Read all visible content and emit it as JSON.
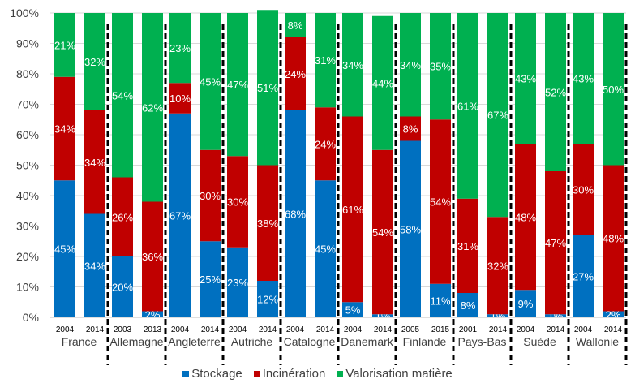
{
  "chart_data": {
    "type": "bar",
    "stacked": true,
    "ylim": [
      0,
      100
    ],
    "y_ticks": [
      "0%",
      "10%",
      "20%",
      "30%",
      "40%",
      "50%",
      "60%",
      "70%",
      "80%",
      "90%",
      "100%"
    ],
    "grid": true,
    "legend_position": "bottom",
    "groups": [
      {
        "name": "France",
        "years": [
          "2004",
          "2014"
        ]
      },
      {
        "name": "Allemagne",
        "years": [
          "2003",
          "2013"
        ]
      },
      {
        "name": "Angleterre",
        "years": [
          "2004",
          "2014"
        ]
      },
      {
        "name": "Autriche",
        "years": [
          "2004",
          "2014"
        ]
      },
      {
        "name": "Catalogne",
        "years": [
          "2004",
          "2014"
        ]
      },
      {
        "name": "Danemark",
        "years": [
          "2004",
          "2014"
        ]
      },
      {
        "name": "Finlande",
        "years": [
          "2005",
          "2015"
        ]
      },
      {
        "name": "Pays-Bas",
        "years": [
          "2001",
          "2014"
        ]
      },
      {
        "name": "Suède",
        "years": [
          "2004",
          "2014"
        ]
      },
      {
        "name": "Wallonie",
        "years": [
          "2004",
          "2014"
        ]
      }
    ],
    "series": [
      {
        "name": "Stockage",
        "color": "#0070C0",
        "values": [
          45,
          34,
          20,
          2,
          67,
          25,
          23,
          12,
          68,
          45,
          5,
          1,
          58,
          11,
          8,
          1,
          9,
          1,
          27,
          2
        ]
      },
      {
        "name": "Incinération",
        "color": "#C00000",
        "values": [
          34,
          34,
          26,
          36,
          10,
          30,
          30,
          38,
          24,
          24,
          61,
          54,
          8,
          54,
          31,
          32,
          48,
          47,
          30,
          48
        ]
      },
      {
        "name": "Valorisation matière",
        "color": "#00B050",
        "values": [
          21,
          32,
          54,
          62,
          23,
          45,
          47,
          51,
          8,
          31,
          34,
          44,
          34,
          35,
          61,
          67,
          43,
          52,
          43,
          50
        ]
      }
    ]
  }
}
